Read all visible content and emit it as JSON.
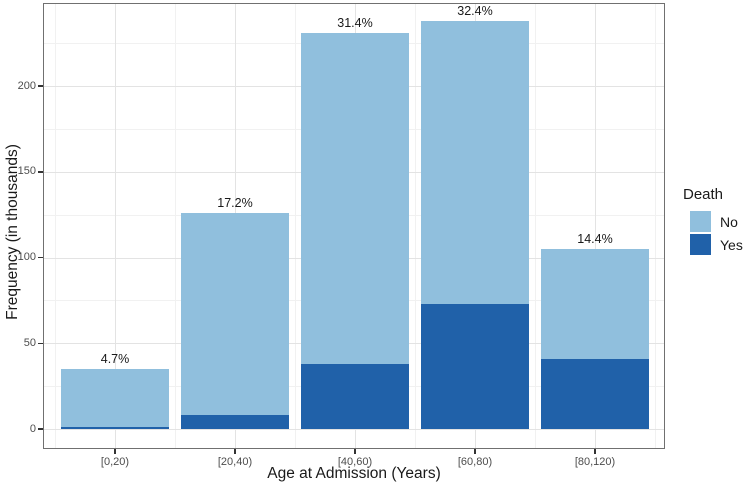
{
  "chart_data": {
    "type": "bar",
    "stacked": true,
    "title": "",
    "xlabel": "Age at Admission (Years)",
    "ylabel": "Frequency (in thousands)",
    "categories": [
      "[0,20)",
      "[20,40)",
      "[40,60)",
      "[60,80)",
      "[80,120)"
    ],
    "series": [
      {
        "name": "Yes",
        "color": "#2061A9",
        "values": [
          1,
          8,
          38,
          73,
          41
        ]
      },
      {
        "name": "No",
        "color": "#90BFDD",
        "values": [
          34,
          118,
          193,
          165,
          64
        ]
      }
    ],
    "stack_note": "series listed bottom-to-top; totals 35, 126, 231, 238, 105",
    "bar_labels": [
      "4.7%",
      "17.2%",
      "31.4%",
      "32.4%",
      "14.4%"
    ],
    "y_ticks": [
      0,
      50,
      100,
      150,
      200
    ],
    "y_minor_ticks": [
      25,
      75,
      125,
      175,
      225
    ],
    "ylim": [
      0,
      248
    ],
    "grid": true,
    "legend": {
      "title": "Death",
      "position": "right",
      "entries": [
        {
          "label": "No",
          "color": "#90BFDD"
        },
        {
          "label": "Yes",
          "color": "#2061A9"
        }
      ]
    }
  },
  "colors": {
    "background": "#ffffff",
    "panel_border": "#707070",
    "grid_major": "#e3e3e3",
    "grid_minor": "#f1f1f1",
    "tick_mark": "#333333",
    "tick_text": "#4d4d4d",
    "title_text": "#1a1a1a"
  }
}
